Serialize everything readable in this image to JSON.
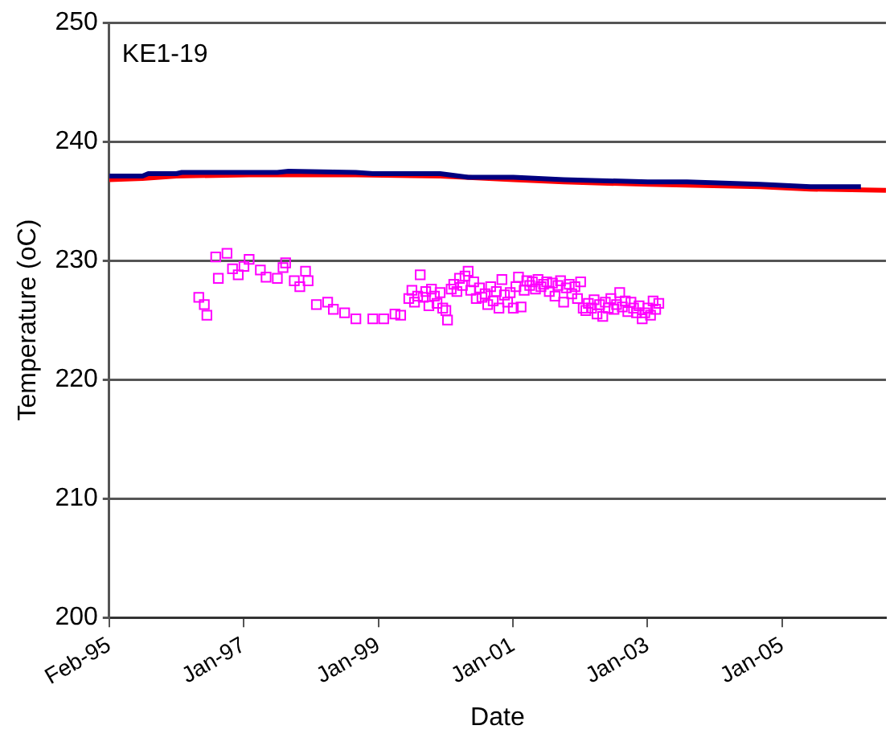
{
  "chart_data": {
    "type": "line",
    "title": "KE1-19",
    "xlabel": "Date",
    "ylabel": "Temperature (oC)",
    "xlim": [
      "1995-02-01",
      "2006-08-15"
    ],
    "xticks": [
      {
        "value": "1995-02-01",
        "label": "Feb-95"
      },
      {
        "value": "1997-01-31",
        "label": "Jan-97"
      },
      {
        "value": "1999-01-31",
        "label": "Jan-99"
      },
      {
        "value": "2001-01-30",
        "label": "Jan-01"
      },
      {
        "value": "2003-01-30",
        "label": "Jan-03"
      },
      {
        "value": "2005-01-29",
        "label": "Jan-05"
      }
    ],
    "ylim": [
      200,
      250
    ],
    "yticks": [
      200,
      210,
      220,
      230,
      240,
      250
    ],
    "grid": "y",
    "legend": false,
    "series": [
      {
        "type": "line",
        "color": "#000080",
        "marker": "none",
        "x": [
          "1995-02-01",
          "1995-08-01",
          "1995-09-01",
          "1996-02-01",
          "1996-03-01",
          "1997-08-01",
          "1997-10-01",
          "1998-10-01",
          "1999-01-01",
          "2000-01-01",
          "2000-06-01",
          "2001-02-01",
          "2001-11-01",
          "2003-02-01",
          "2003-09-01",
          "2004-10-01",
          "2005-07-01",
          "2006-04-01"
        ],
        "values": [
          237.1,
          237.1,
          237.3,
          237.3,
          237.4,
          237.4,
          237.5,
          237.4,
          237.3,
          237.3,
          237.0,
          237.0,
          236.8,
          236.6,
          236.6,
          236.4,
          236.2,
          236.2
        ]
      },
      {
        "type": "line",
        "color": "#ff0000",
        "marker": "none",
        "x": [
          "1995-02-01",
          "1995-08-01",
          "1996-02-01",
          "1997-03-01",
          "1998-10-01",
          "2000-01-01",
          "2001-02-01",
          "2001-11-01",
          "2003-02-01",
          "2004-10-01",
          "2005-07-01",
          "2006-08-15"
        ],
        "values": [
          236.8,
          236.9,
          237.1,
          237.2,
          237.2,
          237.1,
          236.8,
          236.6,
          236.4,
          236.2,
          236.0,
          235.9
        ]
      },
      {
        "type": "scatter",
        "color": "#ff00ff",
        "marker": "square",
        "x": [
          "1996-06-01",
          "1996-07-01",
          "1996-07-15",
          "1996-09-01",
          "1996-09-15",
          "1996-11-01",
          "1996-12-01",
          "1997-01-01",
          "1997-02-01",
          "1997-03-01",
          "1997-05-01",
          "1997-06-01",
          "1997-08-01",
          "1997-09-01",
          "1997-09-15",
          "1997-11-01",
          "1997-12-01",
          "1998-01-01",
          "1998-01-15",
          "1998-03-01",
          "1998-05-01",
          "1998-06-01",
          "1998-08-01",
          "1998-10-01",
          "1999-01-01",
          "1999-03-01",
          "1999-05-01",
          "1999-06-01",
          "1999-07-15",
          "1999-08-01",
          "1999-08-15",
          "1999-09-01",
          "1999-09-15",
          "1999-10-01",
          "1999-10-15",
          "1999-11-01",
          "1999-11-15",
          "1999-12-01",
          "1999-12-15",
          "2000-01-01",
          "2000-01-15",
          "2000-02-01",
          "2000-02-10",
          "2000-03-01",
          "2000-03-15",
          "2000-04-01",
          "2000-04-15",
          "2000-05-01",
          "2000-05-15",
          "2000-06-01",
          "2000-06-15",
          "2000-07-01",
          "2000-07-15",
          "2000-08-01",
          "2000-08-15",
          "2000-09-01",
          "2000-09-15",
          "2000-10-01",
          "2000-10-15",
          "2000-11-01",
          "2000-11-15",
          "2000-12-01",
          "2000-12-15",
          "2001-01-01",
          "2001-01-15",
          "2001-02-01",
          "2001-02-15",
          "2001-03-01",
          "2001-03-15",
          "2001-04-01",
          "2001-04-15",
          "2001-05-01",
          "2001-05-15",
          "2001-06-01",
          "2001-06-15",
          "2001-07-01",
          "2001-07-15",
          "2001-08-01",
          "2001-08-15",
          "2001-09-01",
          "2001-09-15",
          "2001-10-01",
          "2001-10-15",
          "2001-11-01",
          "2001-11-15",
          "2001-12-01",
          "2001-12-15",
          "2002-01-01",
          "2002-01-15",
          "2002-02-01",
          "2002-02-15",
          "2002-03-01",
          "2002-03-15",
          "2002-04-01",
          "2002-04-15",
          "2002-05-01",
          "2002-05-15",
          "2002-06-01",
          "2002-06-15",
          "2002-07-01",
          "2002-07-15",
          "2002-08-01",
          "2002-08-15",
          "2002-09-01",
          "2002-09-15",
          "2002-10-01",
          "2002-10-15",
          "2002-11-01",
          "2002-11-15",
          "2002-12-01",
          "2002-12-15",
          "2003-01-01",
          "2003-01-15",
          "2003-02-01",
          "2003-02-15",
          "2003-03-01",
          "2003-03-15",
          "2003-04-01"
        ],
        "values": [
          226.9,
          226.3,
          225.4,
          230.3,
          228.5,
          230.6,
          229.3,
          228.8,
          229.5,
          230.1,
          229.2,
          228.6,
          228.5,
          229.4,
          229.8,
          228.3,
          227.8,
          229.1,
          228.3,
          226.3,
          226.5,
          225.9,
          225.6,
          225.1,
          225.1,
          225.1,
          225.5,
          225.4,
          226.8,
          227.5,
          226.5,
          227.0,
          228.8,
          226.9,
          227.4,
          226.2,
          227.6,
          227.0,
          226.4,
          227.3,
          226.0,
          225.8,
          225.0,
          227.6,
          228.0,
          227.4,
          228.5,
          227.9,
          228.7,
          229.1,
          227.5,
          228.2,
          226.8,
          227.7,
          226.9,
          227.2,
          226.3,
          227.8,
          226.6,
          227.4,
          226.0,
          228.4,
          227.1,
          226.5,
          227.3,
          226.0,
          227.8,
          228.6,
          226.1,
          227.5,
          228.3,
          227.9,
          228.2,
          227.6,
          228.4,
          227.8,
          228.0,
          228.2,
          227.4,
          228.1,
          227.0,
          227.9,
          228.3,
          226.5,
          227.7,
          228.0,
          227.2,
          227.8,
          226.8,
          228.2,
          226.0,
          225.8,
          226.4,
          226.0,
          226.7,
          225.5,
          226.3,
          225.3,
          226.5,
          226.0,
          226.8,
          225.9,
          226.3,
          227.3,
          226.1,
          226.6,
          225.7,
          226.5,
          226.0,
          225.6,
          226.2,
          225.1,
          225.6,
          226.0,
          225.4,
          226.6,
          225.9,
          226.4
        ]
      }
    ]
  }
}
